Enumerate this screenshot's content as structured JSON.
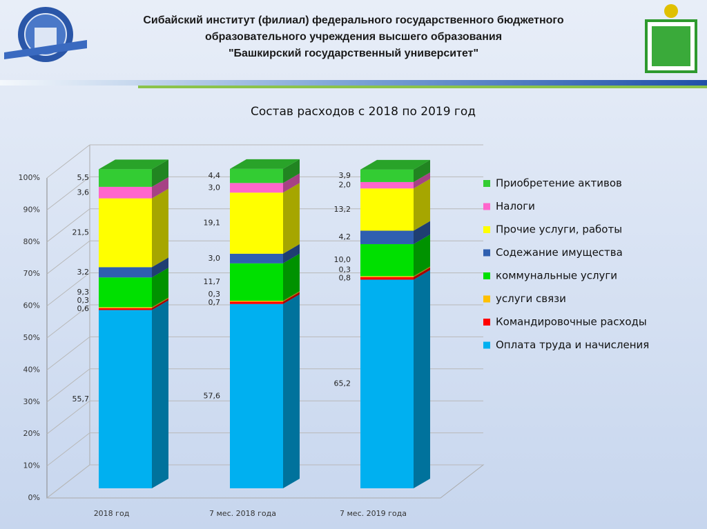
{
  "header": {
    "lines": [
      "Сибайский институт (филиал) федерального государственного бюджетного",
      "образовательного учреждения высшего образования",
      "\"Башкирский государственный университет\""
    ]
  },
  "chart_data": {
    "type": "bar",
    "stacked": true,
    "title": "Состав расходов с 2018 по 2019 год",
    "categories": [
      "2018 год",
      "7 мес. 2018 года",
      "7 мес. 2019 года"
    ],
    "series": [
      {
        "name": "Оплата труда и начисления",
        "color": "#00b0f0",
        "values": [
          55.7,
          57.6,
          65.2
        ],
        "value_labels": [
          "55,7",
          "57,6",
          "65,2"
        ]
      },
      {
        "name": "Командировочные расходы",
        "color": "#ff0000",
        "values": [
          0.6,
          0.7,
          0.8
        ],
        "value_labels": [
          "0,6",
          "0,7",
          "0,8"
        ]
      },
      {
        "name": "услуги связи",
        "color": "#ffc000",
        "values": [
          0.3,
          0.3,
          0.3
        ],
        "value_labels": [
          "0,3",
          "0,3",
          "0,3"
        ]
      },
      {
        "name": "коммунальные услуги",
        "color": "#00e000",
        "values": [
          9.3,
          11.7,
          10.0
        ],
        "value_labels": [
          "9,3",
          "11,7",
          "10,0"
        ]
      },
      {
        "name": "Содежание имущества",
        "color": "#2f5fb0",
        "values": [
          3.2,
          3.0,
          4.2
        ],
        "value_labels": [
          "3,2",
          "3,0",
          "4,2"
        ]
      },
      {
        "name": "Прочие услуги, работы",
        "color": "#ffff00",
        "values": [
          21.5,
          19.1,
          13.2
        ],
        "value_labels": [
          "21,5",
          "19,1",
          "13,2"
        ]
      },
      {
        "name": "Налоги",
        "color": "#ff66cc",
        "values": [
          3.6,
          3.0,
          2.0
        ],
        "value_labels": [
          "3,6",
          "3,0",
          "2,0"
        ]
      },
      {
        "name": "Приобретение активов",
        "color": "#33cc33",
        "values": [
          5.5,
          4.4,
          3.9
        ],
        "value_labels": [
          "5,5",
          "4,4",
          "3,9"
        ]
      }
    ],
    "ylim": [
      0,
      100
    ],
    "yticks": [
      {
        "value": 0,
        "label": "0%"
      },
      {
        "value": 10,
        "label": "10%"
      },
      {
        "value": 20,
        "label": "20%"
      },
      {
        "value": 30,
        "label": "30%"
      },
      {
        "value": 40,
        "label": "40%"
      },
      {
        "value": 50,
        "label": "50%"
      },
      {
        "value": 60,
        "label": "60%"
      },
      {
        "value": 70,
        "label": "70%"
      },
      {
        "value": 80,
        "label": "80%"
      },
      {
        "value": 90,
        "label": "90%"
      },
      {
        "value": 100,
        "label": "100%"
      }
    ],
    "grid": true,
    "legend": "right"
  }
}
